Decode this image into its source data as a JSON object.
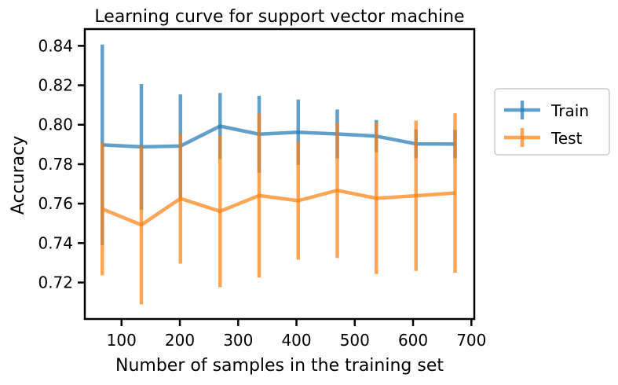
{
  "chart_data": {
    "type": "line",
    "title": "Learning curve for support vector machine",
    "xlabel": "Number of samples in the training set",
    "ylabel": "Accuracy",
    "xlim": [
      37,
      705
    ],
    "ylim": [
      0.7015,
      0.8485
    ],
    "xticks": [
      100,
      200,
      300,
      400,
      500,
      600,
      700
    ],
    "yticks": [
      0.72,
      0.74,
      0.76,
      0.78,
      0.8,
      0.82,
      0.84
    ],
    "grid": false,
    "legend_position": "outside-right",
    "x": [
      67,
      134,
      201,
      269,
      336,
      403,
      470,
      537,
      605,
      672
    ],
    "series": [
      {
        "name": "Train",
        "color": "#1f77b4",
        "values": [
          0.7898,
          0.7888,
          0.7892,
          0.7993,
          0.7952,
          0.7962,
          0.7953,
          0.7942,
          0.7903,
          0.7902
        ],
        "error": [
          0.0509,
          0.0318,
          0.0262,
          0.0168,
          0.0195,
          0.0166,
          0.0124,
          0.0082,
          0.0073,
          0.0072
        ]
      },
      {
        "name": "Test",
        "color": "#ff7f0e",
        "values": [
          0.7573,
          0.7492,
          0.7626,
          0.7561,
          0.7641,
          0.7615,
          0.7667,
          0.7627,
          0.764,
          0.7654
        ],
        "error": [
          0.0337,
          0.0403,
          0.033,
          0.0385,
          0.0416,
          0.0299,
          0.0343,
          0.0384,
          0.0381,
          0.0404
        ]
      }
    ]
  }
}
